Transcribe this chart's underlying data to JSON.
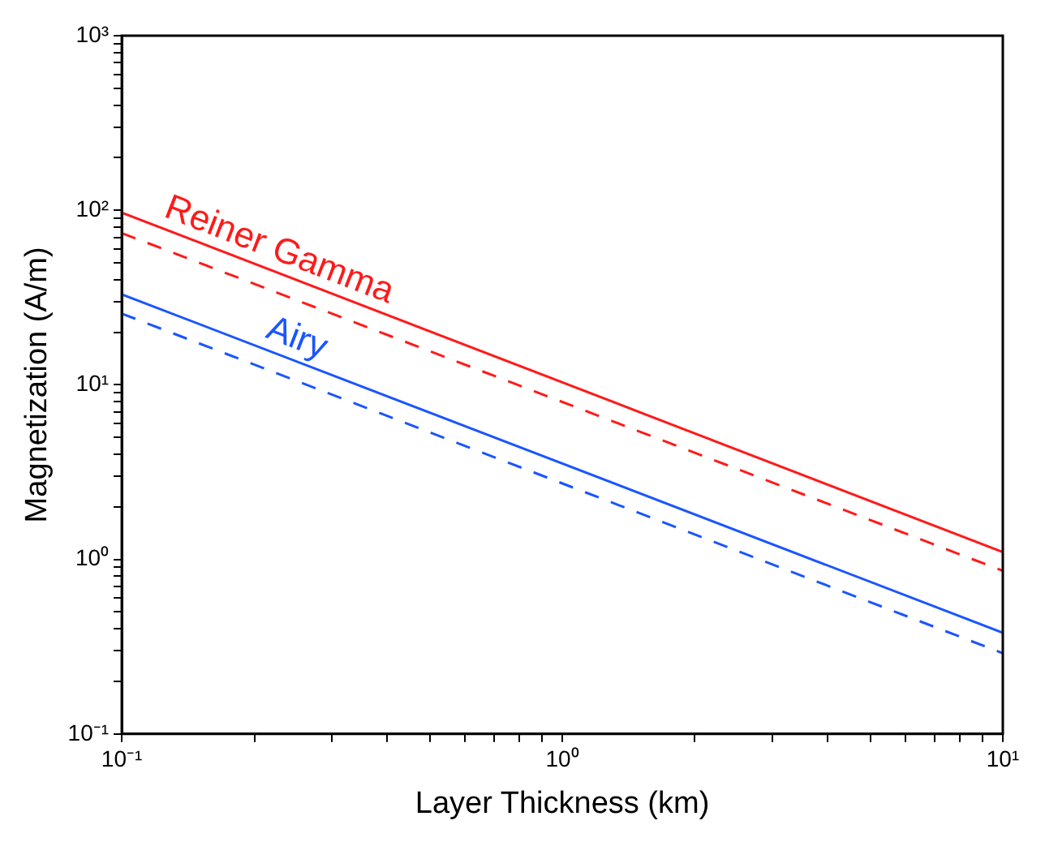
{
  "chart_data": {
    "type": "line",
    "xlabel": "Layer Thickness (km)",
    "ylabel": "Magnetization (A/m)",
    "x": [
      0.1,
      10
    ],
    "series": [
      {
        "name": "Reiner Gamma",
        "color": "#ff1a1a",
        "values": [
          97,
          1.1
        ],
        "line_style": "solid"
      },
      {
        "color": "#ff1a1a",
        "values": [
          74,
          0.86
        ],
        "line_style": "dashed"
      },
      {
        "name": "Airy",
        "color": "#1a55ff",
        "values": [
          33,
          0.38
        ],
        "line_style": "solid"
      },
      {
        "color": "#1a55ff",
        "values": [
          25.6,
          0.29
        ],
        "line_style": "dashed"
      }
    ],
    "log": "xy",
    "xlim": [
      0.1,
      10
    ],
    "ylim": [
      0.1,
      1000
    ],
    "xticks": [
      {
        "value": 0.1,
        "label": "10⁻¹"
      },
      {
        "value": 0.2,
        "label": null
      },
      {
        "value": 0.3,
        "label": null
      },
      {
        "value": 0.4,
        "label": null
      },
      {
        "value": 0.5,
        "label": null
      },
      {
        "value": 0.6,
        "label": null
      },
      {
        "value": 0.7,
        "label": null
      },
      {
        "value": 0.8,
        "label": null
      },
      {
        "value": 0.9,
        "label": null
      },
      {
        "value": 1,
        "label": "10⁰"
      },
      {
        "value": 2,
        "label": null
      },
      {
        "value": 3,
        "label": null
      },
      {
        "value": 4,
        "label": null
      },
      {
        "value": 5,
        "label": null
      },
      {
        "value": 6,
        "label": null
      },
      {
        "value": 7,
        "label": null
      },
      {
        "value": 8,
        "label": null
      },
      {
        "value": 9,
        "label": null
      },
      {
        "value": 10,
        "label": "10¹"
      }
    ],
    "yticks": [
      {
        "value": 0.1,
        "label": "10⁻¹"
      },
      {
        "value": 0.2,
        "label": null
      },
      {
        "value": 0.3,
        "label": null
      },
      {
        "value": 0.4,
        "label": null
      },
      {
        "value": 0.5,
        "label": null
      },
      {
        "value": 0.6,
        "label": null
      },
      {
        "value": 0.7,
        "label": null
      },
      {
        "value": 0.8,
        "label": null
      },
      {
        "value": 0.9,
        "label": null
      },
      {
        "value": 1,
        "label": "10⁰"
      },
      {
        "value": 2,
        "label": null
      },
      {
        "value": 3,
        "label": null
      },
      {
        "value": 4,
        "label": null
      },
      {
        "value": 5,
        "label": null
      },
      {
        "value": 6,
        "label": null
      },
      {
        "value": 7,
        "label": null
      },
      {
        "value": 8,
        "label": null
      },
      {
        "value": 9,
        "label": null
      },
      {
        "value": 10,
        "label": "10¹"
      },
      {
        "value": 20,
        "label": null
      },
      {
        "value": 30,
        "label": null
      },
      {
        "value": 40,
        "label": null
      },
      {
        "value": 50,
        "label": null
      },
      {
        "value": 60,
        "label": null
      },
      {
        "value": 70,
        "label": null
      },
      {
        "value": 80,
        "label": null
      },
      {
        "value": 90,
        "label": null
      },
      {
        "value": 100,
        "label": "10²"
      },
      {
        "value": 200,
        "label": null
      },
      {
        "value": 300,
        "label": null
      },
      {
        "value": 400,
        "label": null
      },
      {
        "value": 500,
        "label": null
      },
      {
        "value": 600,
        "label": null
      },
      {
        "value": 700,
        "label": null
      },
      {
        "value": 800,
        "label": null
      },
      {
        "value": 900,
        "label": null
      },
      {
        "value": 1000,
        "label": "10³"
      }
    ],
    "grid": false,
    "legend": false,
    "marker": "none"
  }
}
